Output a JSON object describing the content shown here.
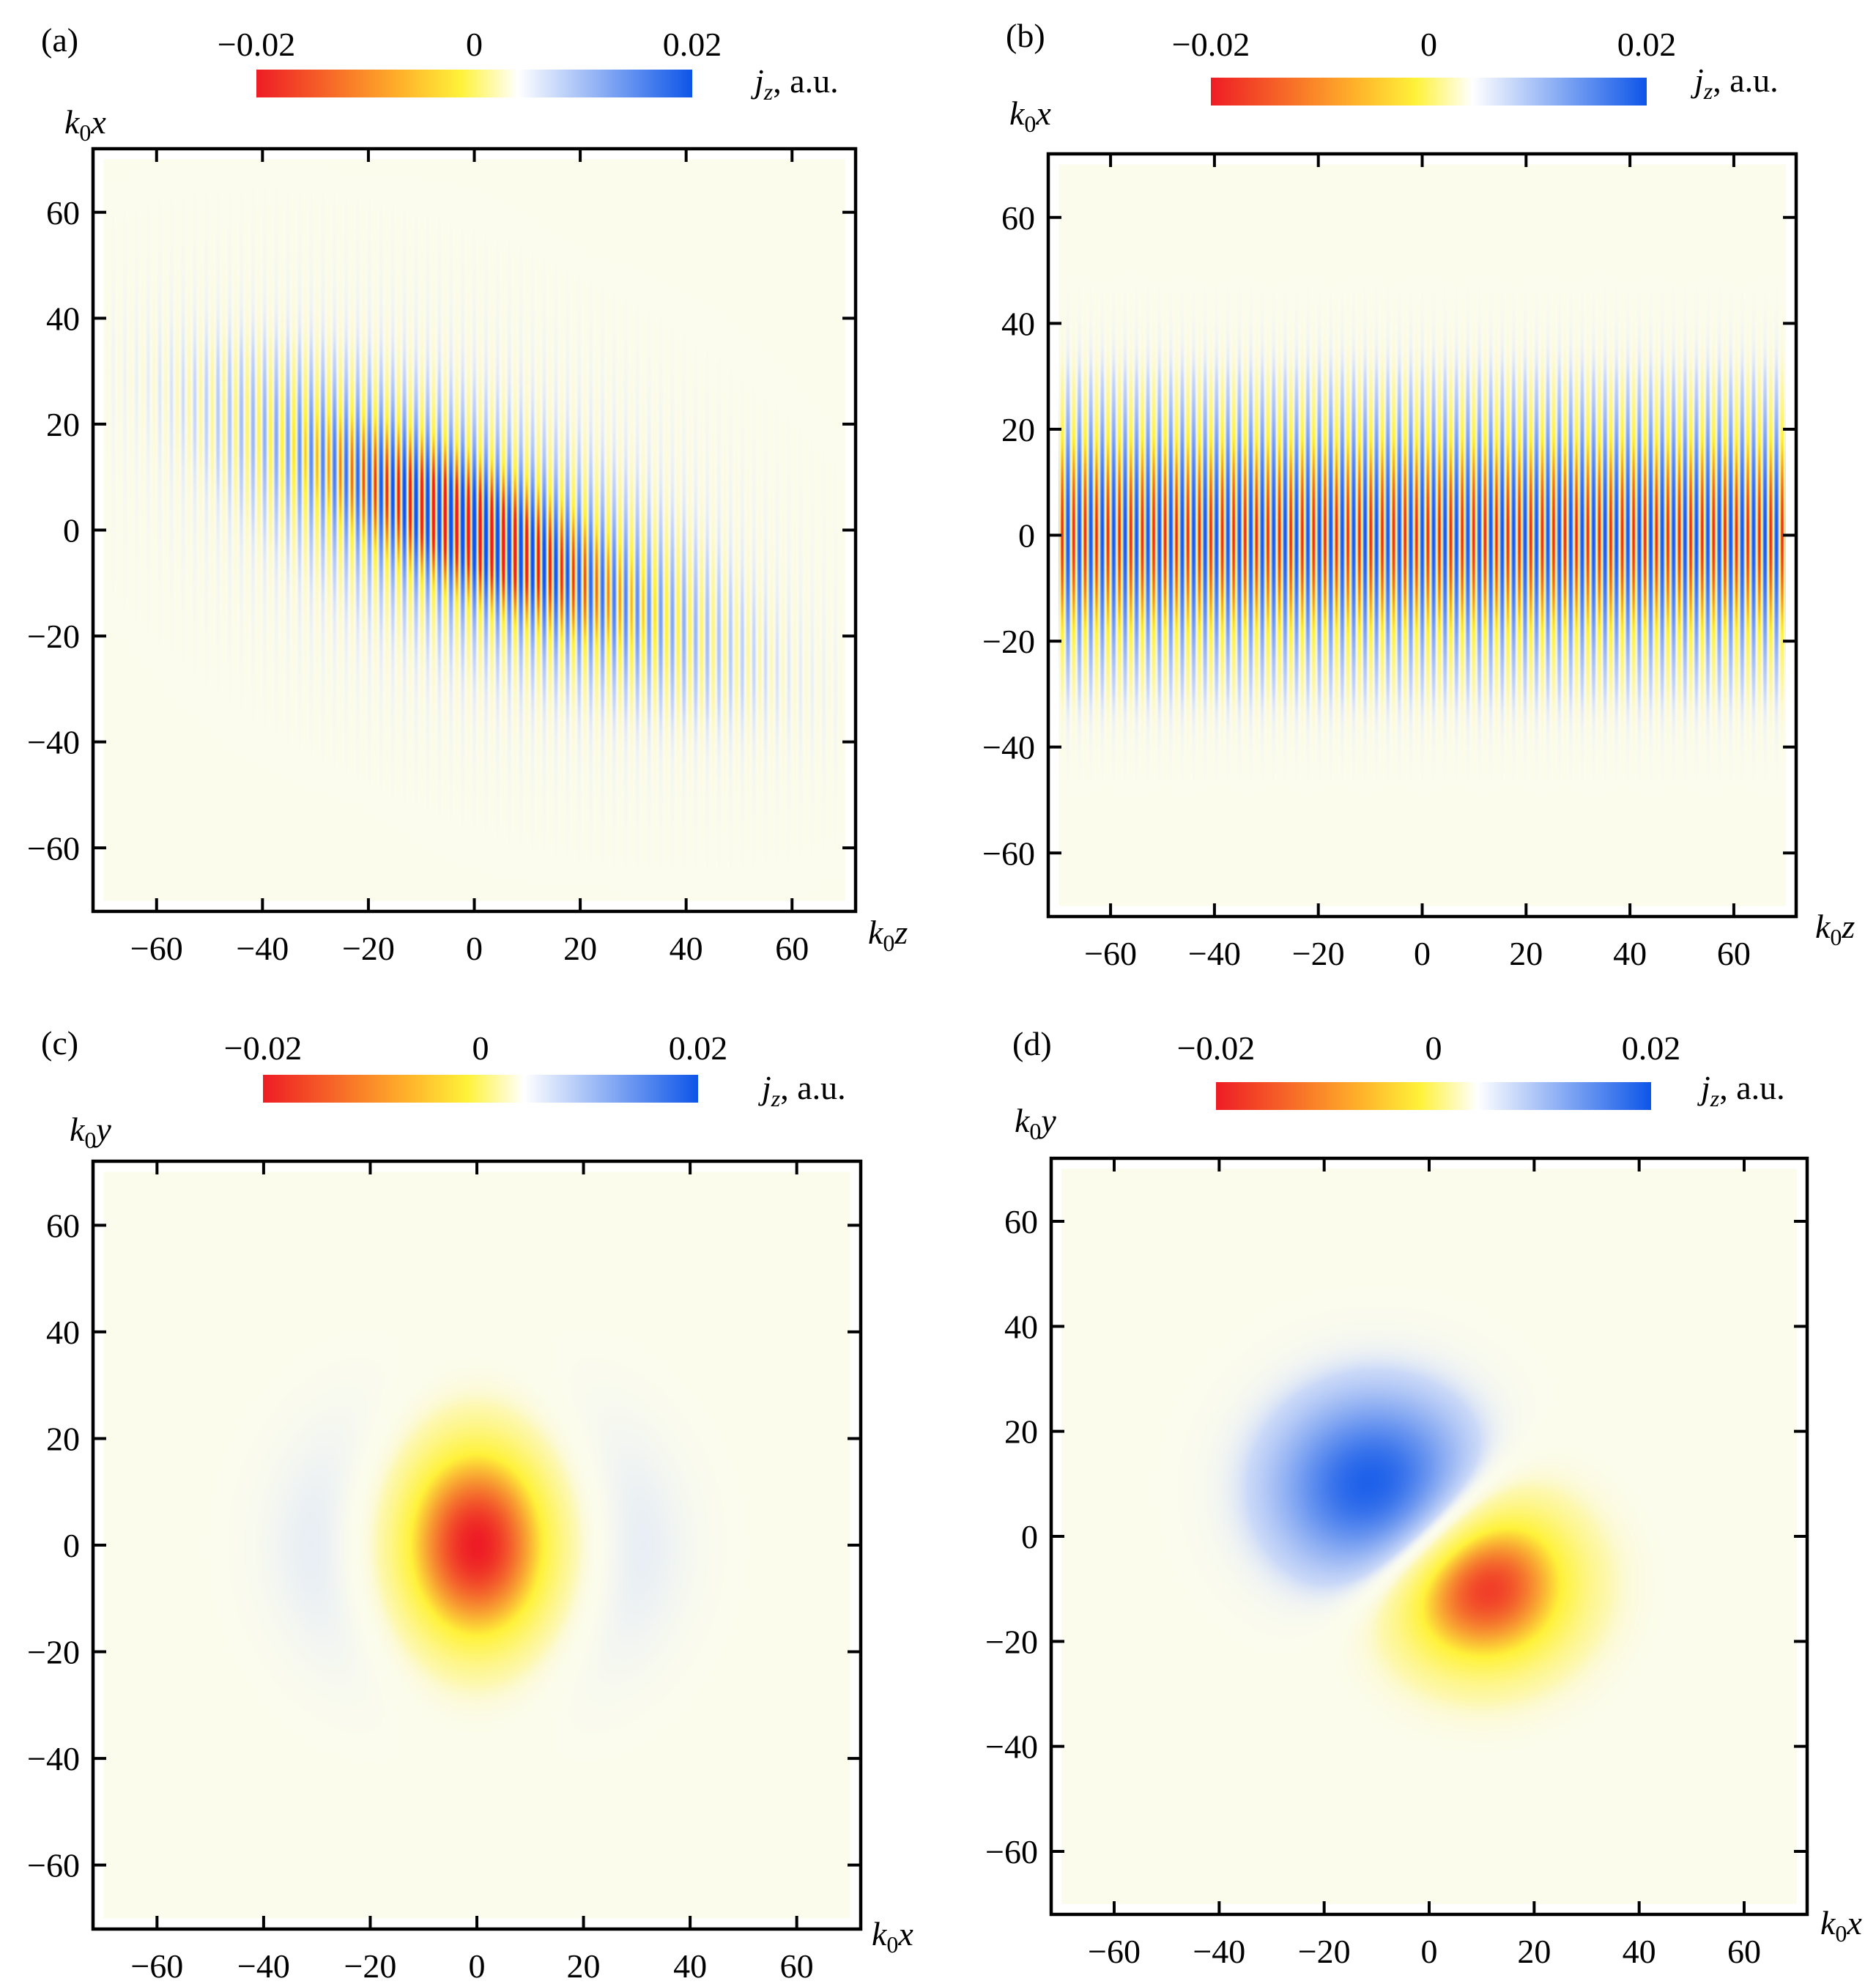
{
  "chart_data": [
    {
      "type": "heatmap",
      "panel_label": "(a)",
      "xlabel": {
        "base": "k",
        "sub": "0",
        "var": "z"
      },
      "ylabel": {
        "base": "k",
        "sub": "0",
        "var": "x"
      },
      "xlim": [
        -72,
        72
      ],
      "ylim": [
        -72,
        72
      ],
      "data_extent": [
        -70,
        70
      ],
      "xticks": [
        -60,
        -40,
        -20,
        0,
        20,
        40,
        60
      ],
      "yticks": [
        -60,
        -40,
        -20,
        0,
        20,
        40,
        60
      ],
      "colorbar": {
        "min": -0.02,
        "max": 0.02,
        "tick_labels": [
          "−0.02",
          "0",
          "0.02"
        ],
        "label_base": "j",
        "label_sub": "z",
        "label_rest": ", a.u.",
        "colors": [
          "#ee1c25",
          "#fff23a",
          "#ffffff",
          "#0d55e8"
        ]
      },
      "field": {
        "pattern": "tilted_fringes",
        "center": [
          0,
          0
        ],
        "tilt_deg": -28,
        "sigma_long": 28,
        "sigma_short": 9,
        "fringe_period": 2.2,
        "peak": 0.02
      }
    },
    {
      "type": "heatmap",
      "panel_label": "(b)",
      "xlabel": {
        "base": "k",
        "sub": "0",
        "var": "z"
      },
      "ylabel": {
        "base": "k",
        "sub": "0",
        "var": "x"
      },
      "xlim": [
        -72,
        72
      ],
      "ylim": [
        -72,
        72
      ],
      "data_extent": [
        -70,
        70
      ],
      "xticks": [
        -60,
        -40,
        -20,
        0,
        20,
        40,
        60
      ],
      "yticks": [
        -60,
        -40,
        -20,
        0,
        20,
        40,
        60
      ],
      "colorbar": {
        "min": -0.02,
        "max": 0.02,
        "tick_labels": [
          "−0.02",
          "0",
          "0.02"
        ],
        "label_base": "j",
        "label_sub": "z",
        "label_rest": ", a.u.",
        "colors": [
          "#ee1c25",
          "#fff23a",
          "#ffffff",
          "#0d55e8"
        ]
      },
      "field": {
        "pattern": "horizontal_band",
        "center_x": 0,
        "sigma": 16,
        "fringe_period": 2.2,
        "peak": 0.02
      }
    },
    {
      "type": "heatmap",
      "panel_label": "(c)",
      "xlabel": {
        "base": "k",
        "sub": "0",
        "var": "x"
      },
      "ylabel": {
        "base": "k",
        "sub": "0",
        "var": "y"
      },
      "xlim": [
        -72,
        72
      ],
      "ylim": [
        -72,
        72
      ],
      "data_extent": [
        -70,
        70
      ],
      "xticks": [
        -60,
        -40,
        -20,
        0,
        20,
        40,
        60
      ],
      "yticks": [
        -60,
        -40,
        -20,
        0,
        20,
        40,
        60
      ],
      "colorbar": {
        "min": -0.02,
        "max": 0.02,
        "tick_labels": [
          "−0.02",
          "0",
          "0.02"
        ],
        "label_base": "j",
        "label_sub": "z",
        "label_rest": ", a.u.",
        "colors": [
          "#ee1c25",
          "#fff23a",
          "#ffffff",
          "#0d55e8"
        ]
      },
      "field": {
        "pattern": "central_lobe_with_ring",
        "center": [
          0,
          0
        ],
        "sigma_x": 11,
        "sigma_y": 15,
        "peak": -0.02,
        "ring_radius": 28,
        "ring_amplitude": 0.0025
      }
    },
    {
      "type": "heatmap",
      "panel_label": "(d)",
      "xlabel": {
        "base": "k",
        "sub": "0",
        "var": "x"
      },
      "ylabel": {
        "base": "k",
        "sub": "0",
        "var": "y"
      },
      "xlim": [
        -72,
        72
      ],
      "ylim": [
        -72,
        72
      ],
      "data_extent": [
        -70,
        70
      ],
      "xticks": [
        -60,
        -40,
        -20,
        0,
        20,
        40,
        60
      ],
      "yticks": [
        -60,
        -40,
        -20,
        0,
        20,
        40,
        60
      ],
      "colorbar": {
        "min": -0.02,
        "max": 0.02,
        "tick_labels": [
          "−0.02",
          "0",
          "0.02"
        ],
        "label_base": "j",
        "label_sub": "z",
        "label_rest": ", a.u.",
        "colors": [
          "#ee1c25",
          "#fff23a",
          "#ffffff",
          "#0d55e8"
        ]
      },
      "field": {
        "pattern": "dipole",
        "positive_lobe_center": [
          -10,
          9
        ],
        "negative_lobe_center": [
          10,
          -9
        ],
        "sigma_x": 13,
        "sigma_y": 12,
        "peak": 0.02
      }
    }
  ]
}
